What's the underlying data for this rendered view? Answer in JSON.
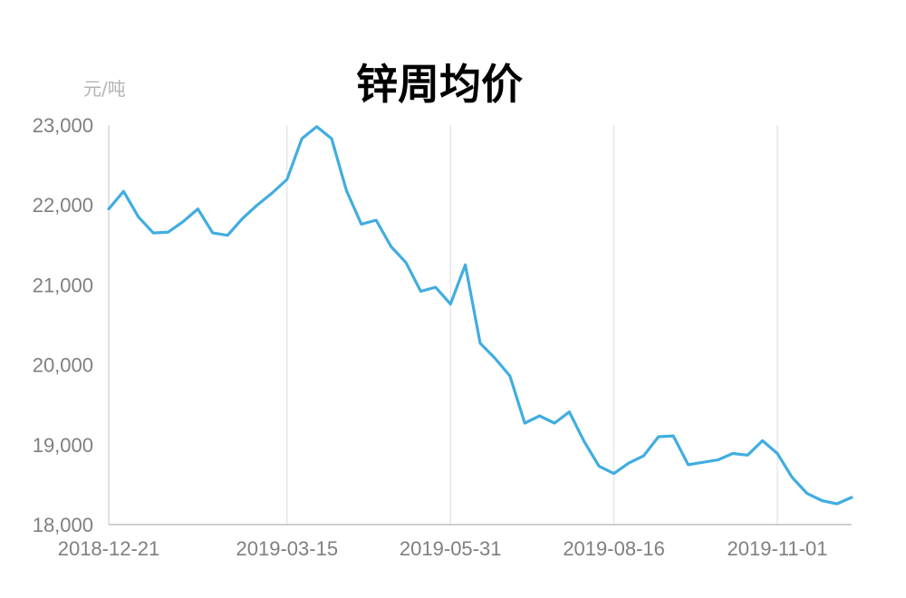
{
  "chart_data": {
    "type": "line",
    "title": "锌周均价",
    "unit_label": "元/吨",
    "xlabel": "",
    "ylabel": "",
    "ylim": [
      18000,
      23000
    ],
    "y_ticks": [
      "18,000",
      "19,000",
      "20,000",
      "21,000",
      "22,000",
      "23,000"
    ],
    "y_tick_values": [
      18000,
      19000,
      20000,
      21000,
      22000,
      23000
    ],
    "x_tick_labels": [
      "2018-12-21",
      "2019-03-15",
      "2019-05-31",
      "2019-08-16",
      "2019-11-01"
    ],
    "x_tick_indices": [
      0,
      12,
      23,
      34,
      45
    ],
    "grid": "vertical",
    "legend": "none",
    "line_color": "#41ade0",
    "series": [
      {
        "values": [
          21950,
          22170,
          21850,
          21650,
          21660,
          21790,
          21950,
          21650,
          21620,
          21830,
          22000,
          22150,
          22320,
          22830,
          22980,
          22830,
          22180,
          21760,
          21810,
          21480,
          21280,
          20920,
          20970,
          20760,
          21250,
          20270,
          20080,
          19860,
          19270,
          19360,
          19270,
          19410,
          19040,
          18730,
          18640,
          18770,
          18860,
          19100,
          19110,
          18750,
          18780,
          18810,
          18890,
          18870,
          19050,
          18890,
          18590,
          18390,
          18300,
          18260,
          18340
        ]
      }
    ]
  }
}
